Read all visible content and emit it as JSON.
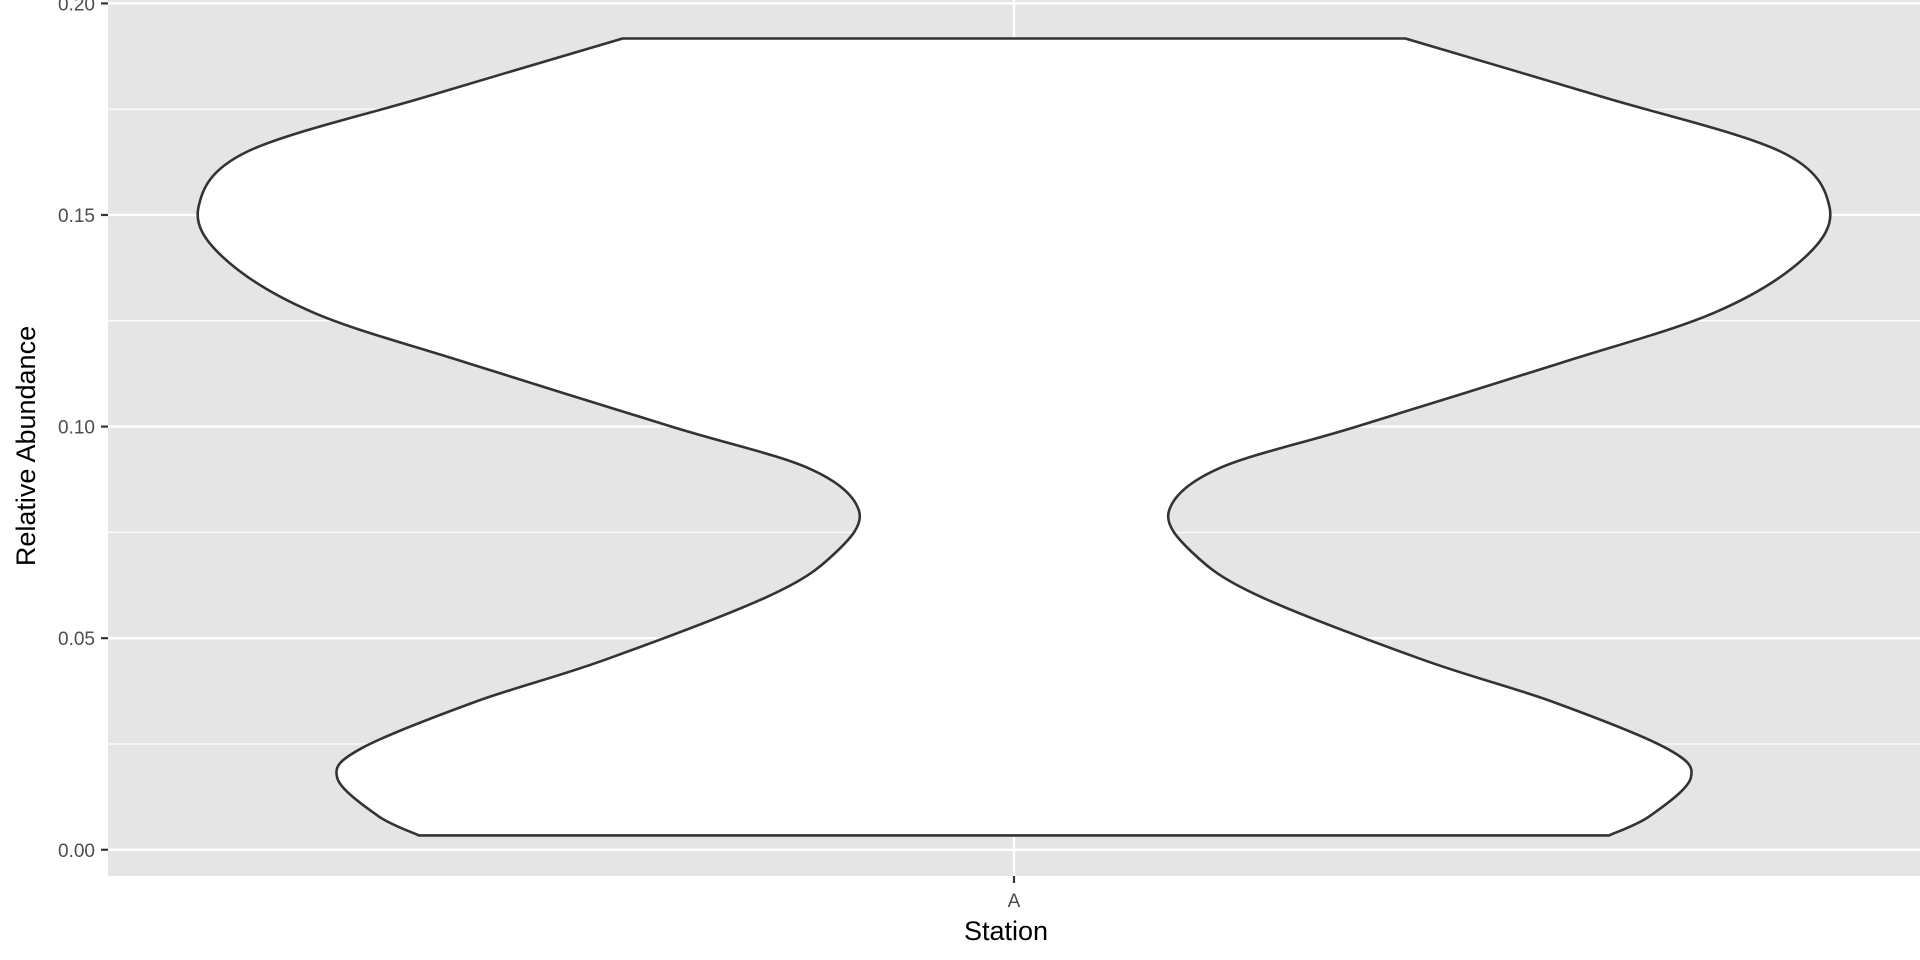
{
  "chart_data": {
    "type": "violin",
    "title": "",
    "xlabel": "Station",
    "ylabel": "Relative Abundance",
    "categories": [
      "A"
    ],
    "ylim": [
      -0.0062,
      0.2008
    ],
    "yticks": [
      0.0,
      0.05,
      0.1,
      0.15,
      0.2
    ],
    "ytick_labels": [
      "0.00",
      "0.05",
      "0.10",
      "0.15",
      "0.20"
    ],
    "grid": true,
    "legend": "none",
    "series": [
      {
        "category": "A",
        "range": [
          0.0034,
          0.1917
        ],
        "density_profile": [
          {
            "y": 0.0034,
            "width": 0.73
          },
          {
            "y": 0.008,
            "width": 0.78
          },
          {
            "y": 0.017,
            "width": 0.83
          },
          {
            "y": 0.024,
            "width": 0.8
          },
          {
            "y": 0.035,
            "width": 0.66
          },
          {
            "y": 0.045,
            "width": 0.5
          },
          {
            "y": 0.06,
            "width": 0.3
          },
          {
            "y": 0.07,
            "width": 0.22
          },
          {
            "y": 0.08,
            "width": 0.19
          },
          {
            "y": 0.09,
            "width": 0.25
          },
          {
            "y": 0.1,
            "width": 0.42
          },
          {
            "y": 0.115,
            "width": 0.67
          },
          {
            "y": 0.127,
            "width": 0.86
          },
          {
            "y": 0.14,
            "width": 0.97
          },
          {
            "y": 0.152,
            "width": 1.0
          },
          {
            "y": 0.165,
            "width": 0.94
          },
          {
            "y": 0.178,
            "width": 0.72
          },
          {
            "y": 0.1917,
            "width": 0.48
          }
        ]
      }
    ],
    "colors": {
      "panel_background": "#e5e5e5",
      "grid": "#ffffff",
      "violin_fill": "#ffffff",
      "violin_outline": "#333333"
    }
  }
}
